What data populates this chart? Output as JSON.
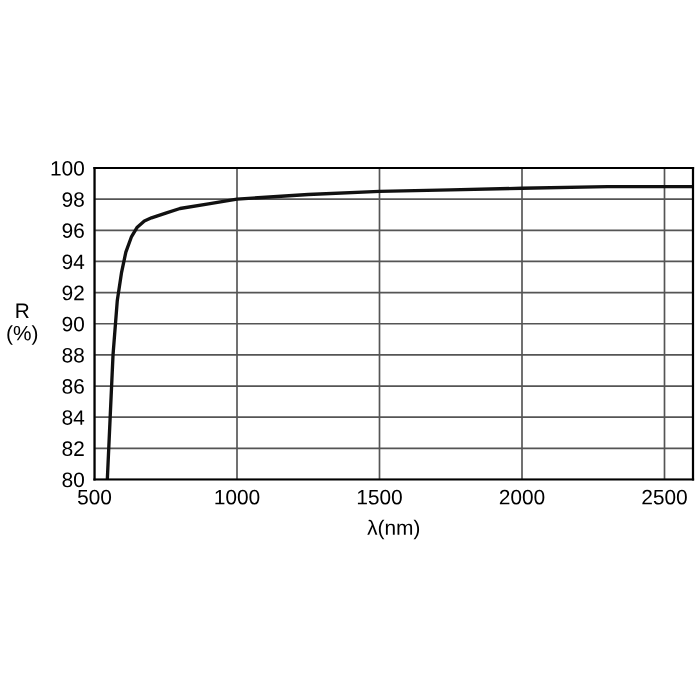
{
  "chart_data": {
    "type": "line",
    "xlabel": "λ(nm)",
    "ylabel": "R\n(%)",
    "x": [
      545,
      555,
      565,
      580,
      595,
      610,
      630,
      650,
      675,
      700,
      750,
      800,
      900,
      1000,
      1250,
      1500,
      1750,
      2000,
      2300,
      2600
    ],
    "series": [
      {
        "color": "#111111",
        "values": [
          80,
          84,
          88,
          91.5,
          93.3,
          94.6,
          95.6,
          96.2,
          96.6,
          96.8,
          97.1,
          97.4,
          97.7,
          98,
          98.3,
          98.5,
          98.6,
          98.7,
          98.8,
          98.8
        ]
      }
    ],
    "xlim": [
      500,
      2600
    ],
    "xticks": [
      500,
      1000,
      1500,
      2000,
      2500
    ],
    "ylim": [
      80,
      100
    ],
    "yticks": [
      80,
      82,
      84,
      86,
      88,
      90,
      92,
      94,
      96,
      98,
      100
    ],
    "grid": true,
    "line_style": "solid"
  }
}
